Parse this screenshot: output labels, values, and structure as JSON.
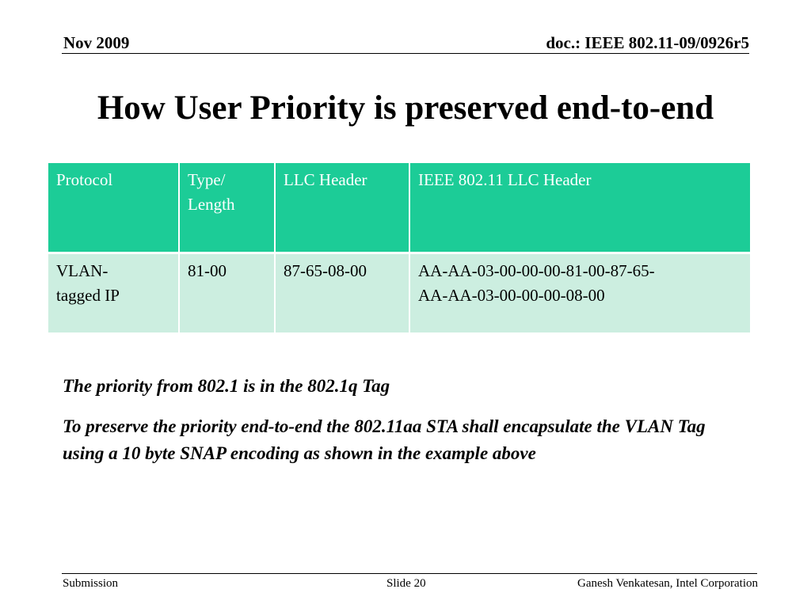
{
  "header": {
    "date": "Nov 2009",
    "doc_id": "doc.: IEEE 802.11-09/0926r5"
  },
  "slide": {
    "title": "How User Priority is preserved end-to-end"
  },
  "table": {
    "header_color": "#1ccc97",
    "row_color": "#cceee0",
    "columns": [
      {
        "line1": "Protocol",
        "line2": ""
      },
      {
        "line1": "Type/",
        "line2": "Length"
      },
      {
        "line1": "LLC Header",
        "line2": ""
      },
      {
        "line1": "IEEE 802.11 LLC Header",
        "line2": ""
      }
    ],
    "rows": [
      {
        "protocol_line1": "VLAN-",
        "protocol_line2": "tagged IP",
        "type_length": "81-00",
        "llc_header": "87-65-08-00",
        "ieee_llc_line1": "AA-AA-03-00-00-00-81-00-87-65-",
        "ieee_llc_line2": "AA-AA-03-00-00-00-08-00"
      }
    ]
  },
  "notes": {
    "priority_note": "The priority from 802.1 is in the 802.1q Tag",
    "preserve_note": "To preserve the priority end-to-end the 802.11aa STA shall encapsulate the VLAN Tag using a 10 byte SNAP encoding as shown in the example above"
  },
  "footer": {
    "left": "Submission",
    "center": "Slide 20",
    "right": "Ganesh Venkatesan, Intel Corporation"
  }
}
